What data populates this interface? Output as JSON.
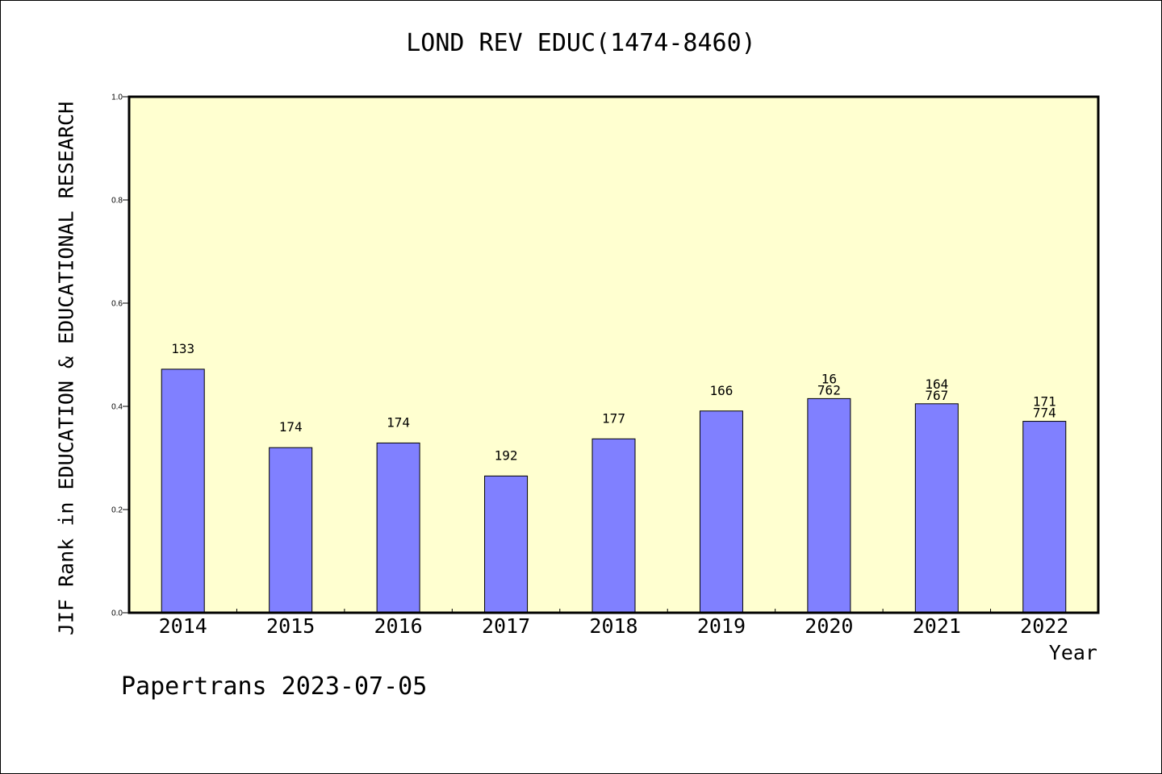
{
  "chart_data": {
    "type": "bar",
    "title": "LOND REV EDUC(1474-8460)",
    "xlabel": "Year",
    "ylabel": "JIF Rank in EDUCATION & EDUCATIONAL RESEARCH",
    "ylim": [
      0,
      1.0
    ],
    "yticks": [
      "0.0",
      "0.2",
      "0.4",
      "0.6",
      "0.8",
      "1.0"
    ],
    "categories": [
      "2014",
      "2015",
      "2016",
      "2017",
      "2018",
      "2019",
      "2020",
      "2021",
      "2022"
    ],
    "values": [
      0.472,
      0.32,
      0.329,
      0.265,
      0.337,
      0.391,
      0.415,
      0.405,
      0.371
    ],
    "labels": [
      [
        "133"
      ],
      [
        "174"
      ],
      [
        "174"
      ],
      [
        "192"
      ],
      [
        "177"
      ],
      [
        "166"
      ],
      [
        "16",
        "762"
      ],
      [
        "164",
        "767"
      ],
      [
        "171",
        "774"
      ]
    ],
    "colors": {
      "plot_bg": "#ffffd0",
      "bar": "#8080ff",
      "bar_edge": "#000000"
    },
    "grid": false
  },
  "footer": "Papertrans 2023-07-05"
}
